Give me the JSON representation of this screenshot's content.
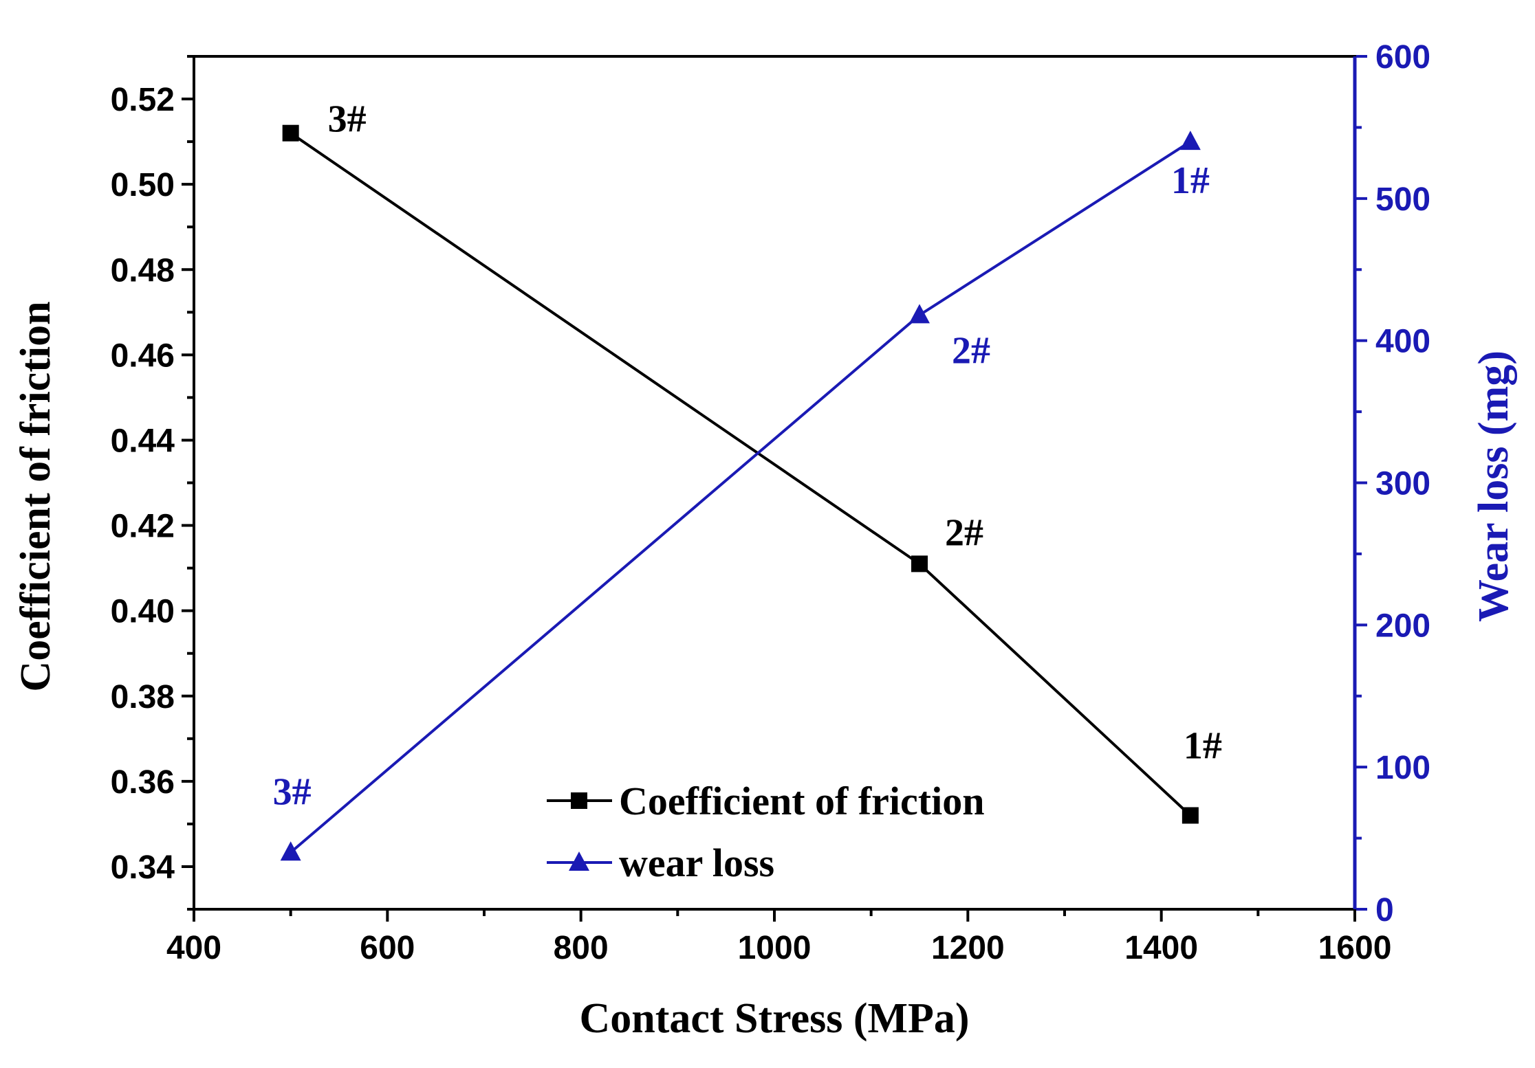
{
  "chart_data": {
    "type": "line",
    "title": "",
    "xlabel": "Contact Stress (MPa)",
    "ylabel_left": "Coefficient of friction",
    "ylabel_right": "Wear loss (mg)",
    "xlim": [
      400,
      1600
    ],
    "ylim_left": [
      0.33,
      0.53
    ],
    "ylim_right": [
      0,
      600
    ],
    "x_ticks": [
      "400",
      "600",
      "800",
      "1000",
      "1200",
      "1400",
      "1600"
    ],
    "y_left_ticks": [
      "0.34",
      "0.36",
      "0.38",
      "0.40",
      "0.42",
      "0.44",
      "0.46",
      "0.48",
      "0.50",
      "0.52"
    ],
    "y_right_ticks": [
      "0",
      "100",
      "200",
      "300",
      "400",
      "500",
      "600"
    ],
    "grid": false,
    "legend_position": "bottom-center",
    "colors": {
      "friction": "#000000",
      "wear": "#1a1ab4",
      "axis": "#000000",
      "right_axis": "#1a1ab4"
    },
    "series": [
      {
        "name": "Coefficient of friction",
        "axis": "left",
        "marker": "square",
        "x": [
          500,
          1150,
          1430
        ],
        "y": [
          0.512,
          0.411,
          0.352
        ],
        "point_labels": [
          "3#",
          "2#",
          "1#"
        ]
      },
      {
        "name": "wear loss",
        "axis": "right",
        "marker": "triangle",
        "x": [
          500,
          1150,
          1430
        ],
        "y": [
          40,
          418,
          540
        ],
        "point_labels": [
          "3#",
          "2#",
          "1#"
        ]
      }
    ]
  }
}
